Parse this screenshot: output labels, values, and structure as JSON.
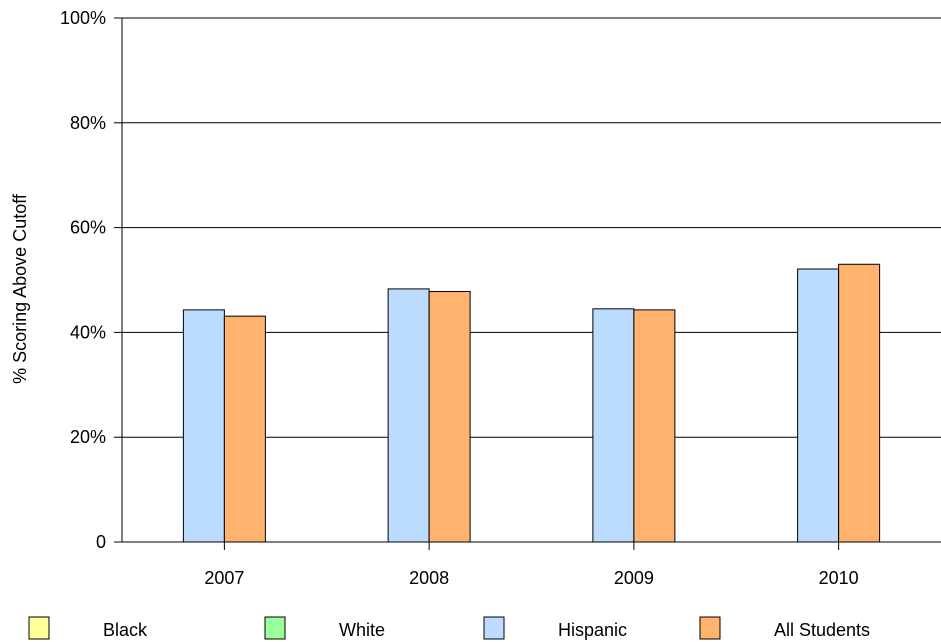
{
  "chart_data": {
    "type": "bar",
    "title": "",
    "xlabel": "",
    "ylabel": "% Scoring Above Cutoff",
    "ylim": [
      0,
      100
    ],
    "yticks": [
      0,
      20,
      40,
      60,
      80,
      100
    ],
    "ytick_labels": [
      "0",
      "20%",
      "40%",
      "60%",
      "80%",
      "100%"
    ],
    "grid": true,
    "legend_position": "bottom",
    "categories": [
      "2007",
      "2008",
      "2009",
      "2010"
    ],
    "series": [
      {
        "name": "Black",
        "color": "#ffff99",
        "values": [
          null,
          null,
          null,
          null
        ]
      },
      {
        "name": "White",
        "color": "#99ff99",
        "values": [
          null,
          null,
          null,
          null
        ]
      },
      {
        "name": "Hispanic",
        "color": "#bbdcff",
        "values": [
          44.3,
          48.3,
          44.5,
          52.1
        ]
      },
      {
        "name": "All Students",
        "color": "#ffb36e",
        "values": [
          43.1,
          47.8,
          44.3,
          53.0
        ]
      }
    ]
  }
}
